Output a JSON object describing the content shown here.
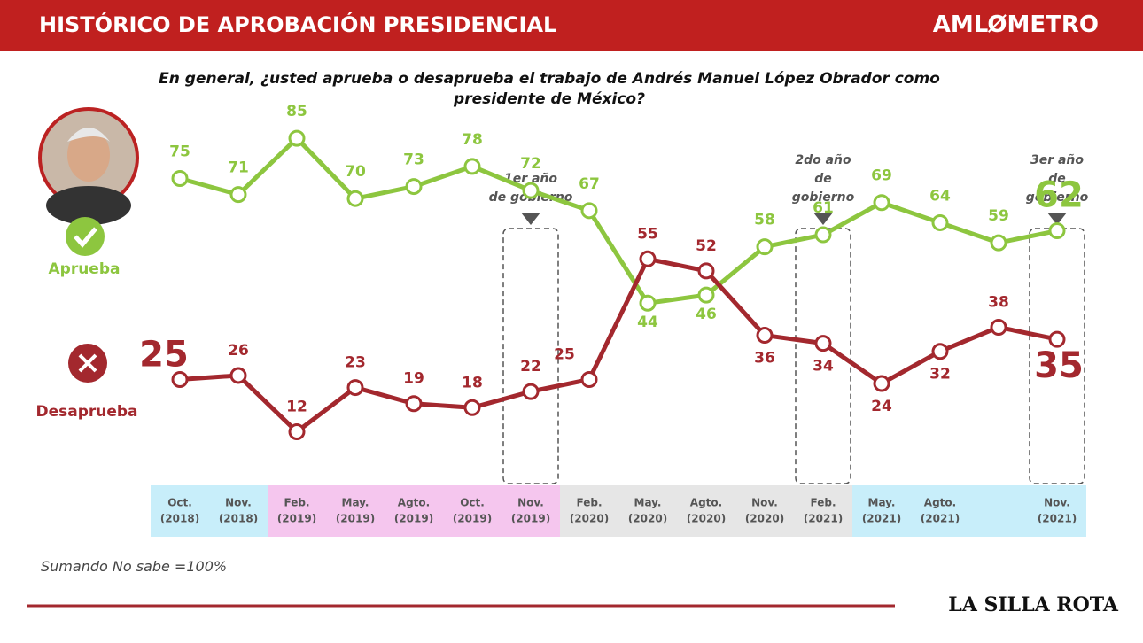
{
  "chart_data": {
    "type": "line",
    "title": "HISTÓRICO DE APROBACIÓN PRESIDENCIAL",
    "brand": "AMLØMETRO",
    "question": "En general, ¿usted aprueba o desaprueba el trabajo de Andrés Manuel López Obrador  como presidente de México?",
    "categories": [
      [
        "Oct.",
        "(2018)"
      ],
      [
        "Nov.",
        "(2018)"
      ],
      [
        "Feb.",
        "(2019)"
      ],
      [
        "May.",
        "(2019)"
      ],
      [
        "Agto.",
        "(2019)"
      ],
      [
        "Oct.",
        "(2019)"
      ],
      [
        "Nov.",
        "(2019)"
      ],
      [
        "Feb.",
        "(2020)"
      ],
      [
        "May.",
        "(2020)"
      ],
      [
        "Agto.",
        "(2020)"
      ],
      [
        "Nov.",
        "(2020)"
      ],
      [
        "Feb.",
        "(2021)"
      ],
      [
        "May.",
        "(2021)"
      ],
      [
        "Agto.",
        "(2021)"
      ],
      null,
      [
        "Nov.",
        "(2021)"
      ]
    ],
    "series": [
      {
        "name": "Aprueba",
        "color": "#8dc63f",
        "values": [
          75,
          71,
          85,
          70,
          73,
          78,
          72,
          67,
          44,
          46,
          58,
          61,
          69,
          64,
          59,
          62
        ]
      },
      {
        "name": "Desaprueba",
        "color": "#a3282e",
        "values": [
          25,
          26,
          12,
          23,
          19,
          18,
          22,
          25,
          55,
          52,
          36,
          34,
          24,
          32,
          38,
          35
        ]
      }
    ],
    "ylim": [
      0,
      100
    ],
    "annotations": [
      {
        "lines": [
          "1er año",
          "de gobierno"
        ]
      },
      {
        "lines": [
          "2do año",
          "de",
          "gobierno"
        ]
      },
      {
        "lines": [
          "3er año",
          "de",
          "gobierno"
        ]
      }
    ],
    "note": "Sumando No sabe =100%",
    "footer": "LA SILLA ROTA"
  }
}
